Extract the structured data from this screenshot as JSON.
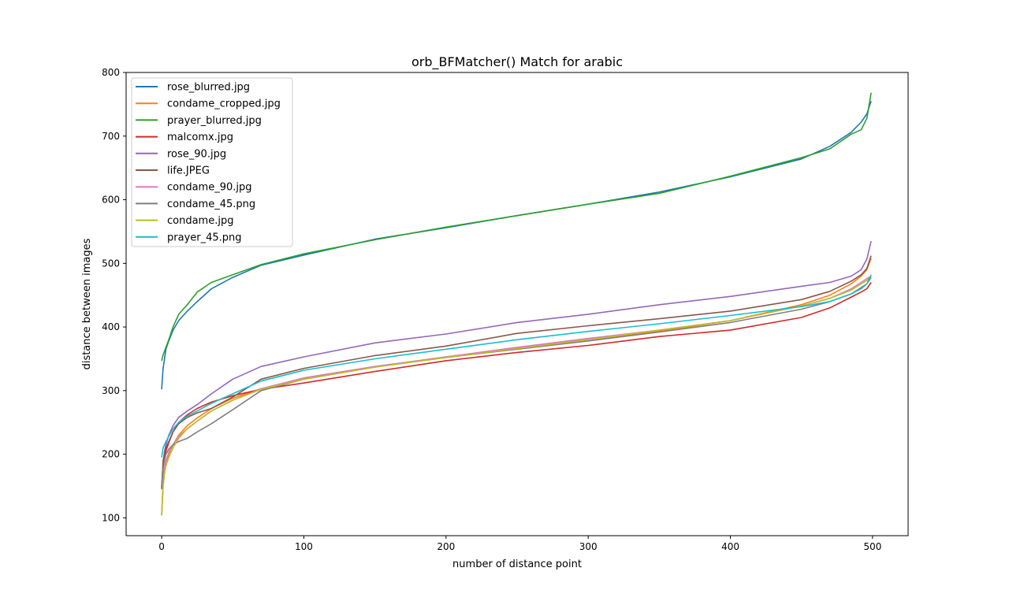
{
  "chart_data": {
    "type": "line",
    "title": "orb_BFMatcher() Match for arabic",
    "xlabel": "number of distance point",
    "ylabel": "distance between images",
    "xlim": [
      -25,
      525
    ],
    "ylim": [
      72,
      800
    ],
    "xticks": [
      0,
      100,
      200,
      300,
      400,
      500
    ],
    "yticks": [
      100,
      200,
      300,
      400,
      500,
      600,
      700,
      800
    ],
    "grid": false,
    "legend_position": "upper-left",
    "x": [
      0,
      1,
      2,
      3,
      5,
      8,
      12,
      18,
      25,
      35,
      50,
      70,
      100,
      150,
      200,
      250,
      300,
      350,
      400,
      450,
      470,
      485,
      492,
      496,
      499
    ],
    "series": [
      {
        "name": "rose_blurred.jpg",
        "color": "#1f77b4",
        "values": [
          302,
          335,
          350,
          365,
          378,
          395,
          410,
          425,
          440,
          460,
          478,
          497,
          513,
          538,
          556,
          575,
          593,
          612,
          636,
          664,
          684,
          706,
          722,
          735,
          755
        ]
      },
      {
        "name": "condame_cropped.jpg",
        "color": "#ff7f0e",
        "values": [
          104,
          150,
          170,
          183,
          200,
          215,
          230,
          245,
          257,
          272,
          288,
          303,
          318,
          337,
          353,
          367,
          380,
          393,
          410,
          435,
          450,
          468,
          480,
          490,
          508
        ]
      },
      {
        "name": "prayer_blurred.jpg",
        "color": "#2ca02c",
        "values": [
          347,
          356,
          362,
          368,
          380,
          400,
          420,
          435,
          455,
          470,
          482,
          498,
          515,
          537,
          557,
          575,
          593,
          610,
          637,
          666,
          680,
          703,
          710,
          728,
          768
        ]
      },
      {
        "name": "malcomx.jpg",
        "color": "#d62728",
        "values": [
          148,
          180,
          195,
          205,
          218,
          235,
          250,
          262,
          272,
          282,
          292,
          302,
          312,
          330,
          347,
          360,
          371,
          385,
          395,
          415,
          430,
          447,
          455,
          460,
          470
        ]
      },
      {
        "name": "rose_90.jpg",
        "color": "#9467bd",
        "values": [
          150,
          185,
          205,
          215,
          230,
          245,
          258,
          268,
          278,
          295,
          318,
          338,
          353,
          375,
          389,
          407,
          420,
          435,
          448,
          464,
          470,
          480,
          490,
          507,
          535
        ]
      },
      {
        "name": "life.JPEG",
        "color": "#8c564b",
        "values": [
          145,
          190,
          200,
          210,
          220,
          235,
          248,
          258,
          265,
          272,
          290,
          318,
          335,
          355,
          370,
          390,
          402,
          413,
          425,
          443,
          456,
          472,
          482,
          492,
          512
        ]
      },
      {
        "name": "condame_90.jpg",
        "color": "#e377c2",
        "values": [
          105,
          160,
          178,
          190,
          203,
          215,
          228,
          240,
          252,
          268,
          285,
          303,
          320,
          338,
          353,
          368,
          382,
          395,
          410,
          433,
          445,
          460,
          470,
          476,
          480
        ]
      },
      {
        "name": "condame_45.png",
        "color": "#7f7f7f",
        "values": [
          150,
          178,
          190,
          200,
          208,
          215,
          220,
          225,
          235,
          248,
          270,
          300,
          318,
          337,
          352,
          365,
          378,
          392,
          407,
          428,
          440,
          452,
          462,
          468,
          478
        ]
      },
      {
        "name": "condame.jpg",
        "color": "#bcbd22",
        "values": [
          104,
          150,
          170,
          182,
          195,
          210,
          225,
          240,
          252,
          268,
          285,
          302,
          318,
          337,
          352,
          366,
          380,
          395,
          410,
          433,
          445,
          458,
          468,
          473,
          480
        ]
      },
      {
        "name": "prayer_45.png",
        "color": "#17becf",
        "values": [
          195,
          210,
          215,
          220,
          228,
          240,
          250,
          260,
          268,
          280,
          295,
          315,
          332,
          350,
          365,
          380,
          393,
          405,
          418,
          432,
          440,
          452,
          460,
          468,
          482
        ]
      }
    ]
  }
}
